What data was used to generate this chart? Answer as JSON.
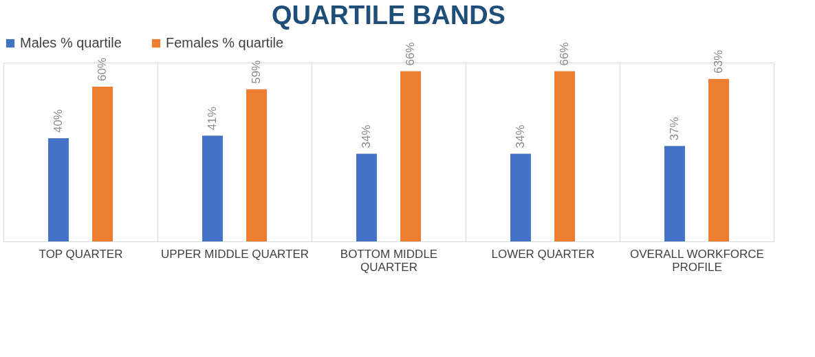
{
  "chart_data": {
    "type": "bar",
    "title": "QUARTILE BANDS",
    "categories": [
      "TOP QUARTER",
      "UPPER MIDDLE QUARTER",
      "BOTTOM MIDDLE QUARTER",
      "LOWER QUARTER",
      "OVERALL WORKFORCE PROFILE"
    ],
    "series": [
      {
        "name": "Males % quartile",
        "color": "#4472c4",
        "values": [
          40,
          41,
          34,
          34,
          37
        ],
        "value_labels": [
          "40%",
          "41%",
          "34%",
          "34%",
          "37%"
        ]
      },
      {
        "name": "Females % quartile",
        "color": "#ed7d31",
        "values": [
          60,
          59,
          66,
          66,
          63
        ],
        "value_labels": [
          "60%",
          "59%",
          "66%",
          "66%",
          "63%"
        ]
      }
    ],
    "legend": "top",
    "grid": "x"
  }
}
